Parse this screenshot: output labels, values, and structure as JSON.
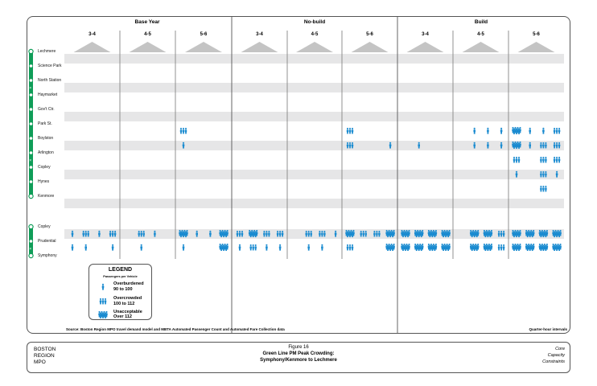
{
  "groups": [
    "Base Year",
    "No-build",
    "Build"
  ],
  "periods": [
    "3-4",
    "4-5",
    "5-6"
  ],
  "stations_top": [
    "Lechmere",
    "Science Park",
    "North Station",
    "Haymarket",
    "Gov't Ctr.",
    "Park St.",
    "Boylston",
    "Arlington",
    "Copley",
    "Hynes",
    "Kenmore"
  ],
  "stations_bottom": [
    "Copley",
    "Prudential",
    "Symphony"
  ],
  "colors": {
    "line": "#0f9d58",
    "icon": "#1a8bd0",
    "band": "#e6e6e7",
    "triangle": "#c4c4c4"
  },
  "crowding_levels": {
    "1": "Overburdened",
    "2": "Overcrowded",
    "3": "Unacceptable"
  },
  "chart_data": {
    "type": "table",
    "segments": [
      {
        "from": "Lechmere",
        "to": "Science Park",
        "levels": []
      },
      {
        "from": "Science Park",
        "to": "North Station",
        "levels": []
      },
      {
        "from": "North Station",
        "to": "Haymarket",
        "levels": []
      },
      {
        "from": "Haymarket",
        "to": "Gov't Ctr.",
        "levels": []
      },
      {
        "from": "Gov't Ctr.",
        "to": "Park St.",
        "levels": []
      },
      {
        "from": "Park St.",
        "to": "Boylston",
        "levels": [
          [
            0,
            0,
            0,
            0
          ],
          [
            0,
            0,
            0,
            0
          ],
          [
            2,
            0,
            0,
            0
          ],
          [
            0,
            0,
            0,
            0
          ],
          [
            0,
            0,
            0,
            0
          ],
          [
            2,
            0,
            0,
            0
          ],
          [
            0,
            0,
            0,
            0
          ],
          [
            0,
            1,
            1,
            1
          ],
          [
            3,
            1,
            1,
            2
          ]
        ]
      },
      {
        "from": "Boylston",
        "to": "Arlington",
        "levels": [
          [
            0,
            0,
            0,
            0
          ],
          [
            0,
            0,
            0,
            0
          ],
          [
            1,
            0,
            0,
            0
          ],
          [
            0,
            0,
            0,
            0
          ],
          [
            0,
            0,
            0,
            0
          ],
          [
            2,
            0,
            0,
            1
          ],
          [
            0,
            1,
            0,
            0
          ],
          [
            0,
            1,
            1,
            1
          ],
          [
            3,
            1,
            2,
            2
          ]
        ]
      },
      {
        "from": "Arlington",
        "to": "Copley",
        "levels": [
          [
            0,
            0,
            0,
            0
          ],
          [
            0,
            0,
            0,
            0
          ],
          [
            0,
            0,
            0,
            0
          ],
          [
            0,
            0,
            0,
            0
          ],
          [
            0,
            0,
            0,
            0
          ],
          [
            0,
            0,
            0,
            0
          ],
          [
            0,
            0,
            0,
            0
          ],
          [
            0,
            0,
            0,
            0
          ],
          [
            2,
            0,
            2,
            2
          ]
        ]
      },
      {
        "from": "Copley",
        "to": "Hynes",
        "levels": [
          [
            0,
            0,
            0,
            0
          ],
          [
            0,
            0,
            0,
            0
          ],
          [
            0,
            0,
            0,
            0
          ],
          [
            0,
            0,
            0,
            0
          ],
          [
            0,
            0,
            0,
            0
          ],
          [
            0,
            0,
            0,
            0
          ],
          [
            0,
            0,
            0,
            0
          ],
          [
            0,
            0,
            0,
            0
          ],
          [
            1,
            0,
            2,
            1
          ]
        ]
      },
      {
        "from": "Hynes",
        "to": "Kenmore",
        "levels": [
          [
            0,
            0,
            0,
            0
          ],
          [
            0,
            0,
            0,
            0
          ],
          [
            0,
            0,
            0,
            0
          ],
          [
            0,
            0,
            0,
            0
          ],
          [
            0,
            0,
            0,
            0
          ],
          [
            0,
            0,
            0,
            0
          ],
          [
            0,
            0,
            0,
            0
          ],
          [
            0,
            0,
            0,
            0
          ],
          [
            0,
            0,
            2,
            0
          ]
        ]
      },
      {
        "from": "Copley",
        "to": "Prudential",
        "levels": [
          [
            1,
            2,
            1,
            2
          ],
          [
            0,
            2,
            1,
            0
          ],
          [
            3,
            1,
            1,
            3
          ],
          [
            2,
            3,
            2,
            2
          ],
          [
            0,
            2,
            2,
            1
          ],
          [
            3,
            2,
            2,
            3
          ],
          [
            3,
            3,
            3,
            3
          ],
          [
            0,
            3,
            3,
            2
          ],
          [
            3,
            3,
            3,
            3
          ]
        ]
      },
      {
        "from": "Prudential",
        "to": "Symphony",
        "levels": [
          [
            1,
            1,
            0,
            1
          ],
          [
            0,
            1,
            0,
            0
          ],
          [
            1,
            0,
            0,
            3
          ],
          [
            1,
            2,
            1,
            1
          ],
          [
            0,
            1,
            1,
            0
          ],
          [
            2,
            0,
            0,
            3
          ],
          [
            3,
            3,
            3,
            3
          ],
          [
            0,
            3,
            3,
            2
          ],
          [
            3,
            3,
            3,
            3
          ]
        ]
      }
    ]
  },
  "legend": {
    "title": "LEGEND",
    "subtitle": "Passengers per Vehicle",
    "items": [
      {
        "label": "Overburdened",
        "range": "90 to 100"
      },
      {
        "label": "Overcrowded",
        "range": "100 to 112"
      },
      {
        "label": "Unacceptable",
        "range": "Over 112"
      }
    ]
  },
  "source": "Source: Boston Region MPO travel demand model and MBTA Automated Passenger Count and Automated Fare Collection data",
  "interval_note": "Quarter-hour intervals",
  "footer": {
    "org": [
      "BOSTON",
      "REGION",
      "MPO"
    ],
    "figure": "Figure 16",
    "title1": "Green Line PM Peak Crowding:",
    "title2": "Symphony/Kenmore to Lechmere",
    "tags": [
      "Core",
      "Capacity",
      "Constraints"
    ]
  }
}
